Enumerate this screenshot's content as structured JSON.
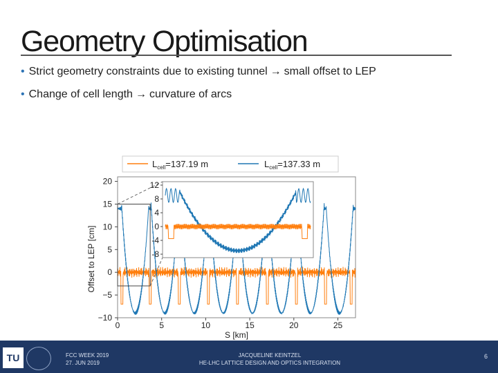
{
  "slide": {
    "title": "Geometry Optimisation",
    "bullets": [
      {
        "text": "Strict geometry constraints due to existing tunnel",
        "arrow": "→",
        "tail": "small offset to LEP"
      },
      {
        "text": "Change of cell length",
        "arrow": "→",
        "tail": "curvature of arcs"
      }
    ]
  },
  "footer": {
    "logo_text": "TU",
    "event": "FCC WEEK 2019",
    "date": "27. JUN 2019",
    "author": "JACQUELINE KEINTZEL",
    "project": "HE-LHC LATTICE DESIGN AND OPTICS INTEGRATION",
    "page_number": "6"
  },
  "colors": {
    "orange": "#ff7f0e",
    "blue": "#1f77b4",
    "footer_bg": "#1f3864"
  },
  "chart_data": {
    "type": "line",
    "xlabel": "S [km]",
    "ylabel": "Offset to LEP [cm]",
    "xlim": [
      0,
      27
    ],
    "ylim": [
      -10,
      21
    ],
    "xticks": [
      0,
      5,
      10,
      15,
      20,
      25
    ],
    "yticks": [
      -10,
      -5,
      0,
      5,
      10,
      15,
      20
    ],
    "legend": {
      "placement": "top",
      "entries": [
        {
          "label": "L",
          "sub": "cell",
          "value": "=137.19 m",
          "color": "#ff7f0e"
        },
        {
          "label": "L",
          "sub": "cell",
          "value": "=137.33 m",
          "color": "#1f77b4"
        }
      ]
    },
    "series": [
      {
        "name": "Lcell=137.19 m",
        "color": "#ff7f0e",
        "arc_offset": 0,
        "ripple": 1.2,
        "dips": [
          0.5,
          3.7,
          7.0,
          10.3,
          13.6,
          17.0,
          20.3,
          23.6,
          26.5
        ],
        "dip_depth": -7
      },
      {
        "name": "Lcell=137.33 m",
        "color": "#1f77b4",
        "arc_centers": [
          2.0,
          5.35,
          8.7,
          12.0,
          15.3,
          18.6,
          21.9,
          25.2
        ],
        "arc_min": -9,
        "arc_edge": 15,
        "arc_half_width": 1.55
      }
    ],
    "inset": {
      "zoom_range_x": [
        0,
        3.7
      ],
      "zoom_range_y": [
        -3,
        15
      ],
      "yticks": [
        12,
        8,
        4,
        0,
        -4,
        -8
      ],
      "ylim": [
        -9,
        13
      ]
    }
  }
}
